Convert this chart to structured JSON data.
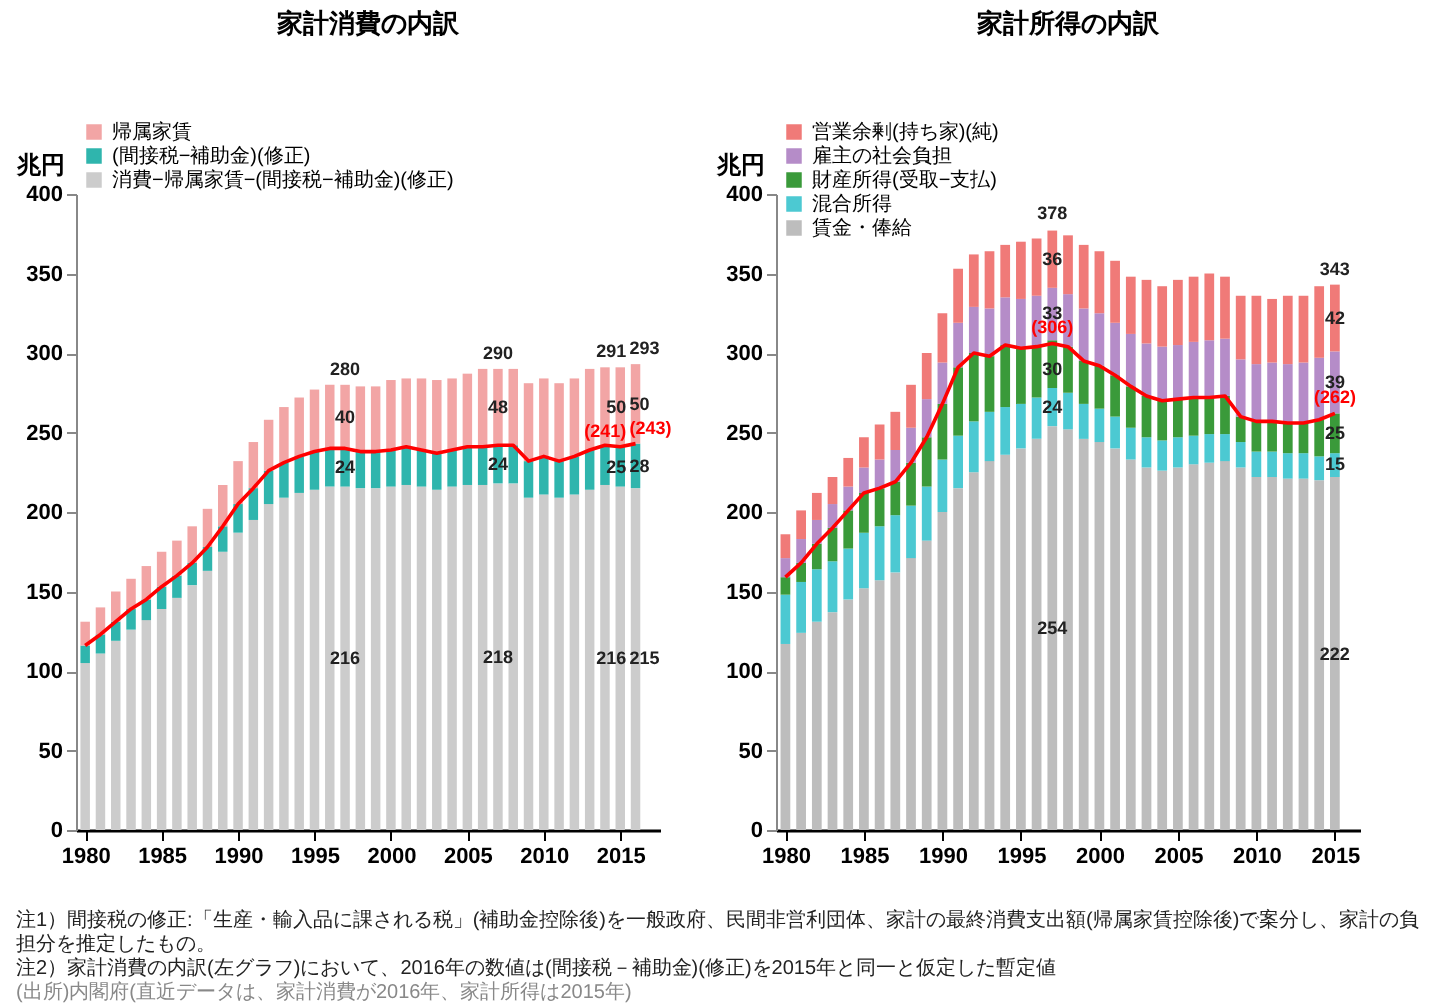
{
  "chart_data": [
    {
      "type": "bar",
      "title": "家計消費の内訳",
      "ylabel": "兆円",
      "stacked": true,
      "legend": "top left",
      "x": [
        1980,
        1981,
        1982,
        1983,
        1984,
        1985,
        1986,
        1987,
        1988,
        1989,
        1990,
        1991,
        1992,
        1993,
        1994,
        1995,
        1996,
        1997,
        1998,
        1999,
        2000,
        2001,
        2002,
        2003,
        2004,
        2005,
        2006,
        2007,
        2008,
        2009,
        2010,
        2011,
        2012,
        2013,
        2014,
        2015,
        2016
      ],
      "xlim": [
        1979.4,
        2017.6
      ],
      "xticks": [
        1980,
        1985,
        1990,
        1995,
        2000,
        2005,
        2010,
        2015
      ],
      "ylim": [
        0,
        400
      ],
      "yticks": [
        0,
        50,
        100,
        150,
        200,
        250,
        300,
        350,
        400
      ],
      "series": [
        {
          "name": "消費−帰属家賃−(間接税−補助金)(修正)",
          "color": "#cccccc",
          "values": [
            105,
            111,
            119,
            126,
            132,
            139,
            146,
            154,
            163,
            175,
            187,
            195,
            205,
            209,
            212,
            214,
            216,
            216,
            215,
            215,
            216,
            217,
            216,
            214,
            216,
            217,
            217,
            218,
            218,
            209,
            211,
            209,
            211,
            214,
            217,
            216,
            215
          ]
        },
        {
          "name": "(間接税−補助金)(修正)",
          "color": "#2fb5ad",
          "values": [
            11,
            12,
            12,
            13,
            13,
            14,
            14,
            14,
            15,
            16,
            18,
            20,
            21,
            22,
            23,
            24,
            24,
            24,
            23,
            23,
            23,
            24,
            23,
            23,
            23,
            24,
            24,
            24,
            24,
            23,
            24,
            23,
            24,
            25,
            25,
            25,
            28
          ]
        },
        {
          "name": "帰属家賃",
          "color": "#f2a5a5",
          "values": [
            15,
            17,
            19,
            19,
            21,
            22,
            22,
            23,
            24,
            26,
            27,
            29,
            32,
            35,
            37,
            39,
            40,
            40,
            41,
            41,
            44,
            43,
            45,
            46,
            45,
            46,
            49,
            48,
            48,
            49,
            49,
            49,
            49,
            51,
            49,
            50,
            50
          ]
        },
        {
          "type": "line",
          "color": "#ff0000",
          "values": [
            116,
            123,
            131,
            139,
            145,
            153,
            160,
            168,
            178,
            191,
            205,
            215,
            226,
            231,
            235,
            238,
            240,
            240,
            238,
            238,
            239,
            241,
            239,
            237,
            239,
            241,
            241,
            242,
            242,
            232,
            235,
            232,
            235,
            239,
            242,
            241,
            243
          ]
        }
      ],
      "annotations": [
        {
          "text": "280",
          "x": 1997,
          "y": 280
        },
        {
          "text": "40",
          "x": 1997,
          "y": 260
        },
        {
          "text": "24",
          "x": 1997,
          "y": 228
        },
        {
          "text": "216",
          "x": 1997,
          "y": 108
        },
        {
          "text": "290",
          "x": 2007,
          "y": 290
        },
        {
          "text": "48",
          "x": 2007,
          "y": 266
        },
        {
          "text": "24",
          "x": 2007,
          "y": 230
        },
        {
          "text": "218",
          "x": 2007,
          "y": 109
        },
        {
          "text": "291",
          "x": 2015,
          "y": 291
        },
        {
          "text": "50",
          "x": 2015,
          "y": 266
        },
        {
          "text": "25",
          "x": 2015,
          "y": 228
        },
        {
          "text": "216",
          "x": 2015,
          "y": 108
        },
        {
          "text": "(241)",
          "x": 2015,
          "y": 241
        },
        {
          "text": "293",
          "x": 2016,
          "y": 293
        },
        {
          "text": "50",
          "x": 2016,
          "y": 268
        },
        {
          "text": "28",
          "x": 2016,
          "y": 229
        },
        {
          "text": "215",
          "x": 2016,
          "y": 108
        },
        {
          "text": "(243)",
          "x": 2016,
          "y": 243
        },
        "注1）間接税の修正:「生産・輸入品に課される税」(補助金控除後)を一般政府、民間非営利団体、家計の最終消費支出額(帰属家賃控除後)で案分し、家計の負担分を推定したもの。",
        "注2）家計消費の内訳(左グラフ)において、2016年の数値は(間接税－補助金)(修正)を2015年と同一と仮定した暫定値",
        "(出所)内閣府(直近データは、家計消費が2016年、家計所得は2015年)"
      ]
    },
    {
      "type": "bar",
      "title": "家計所得の内訳",
      "ylabel": "兆円",
      "stacked": true,
      "legend": "top left",
      "x": [
        1980,
        1981,
        1982,
        1983,
        1984,
        1985,
        1986,
        1987,
        1988,
        1989,
        1990,
        1991,
        1992,
        1993,
        1994,
        1995,
        1996,
        1997,
        1998,
        1999,
        2000,
        2001,
        2002,
        2003,
        2004,
        2005,
        2006,
        2007,
        2008,
        2009,
        2010,
        2011,
        2012,
        2013,
        2014,
        2015
      ],
      "xlim": [
        1979.4,
        2016.6
      ],
      "xticks": [
        1980,
        1985,
        1990,
        1995,
        2000,
        2005,
        2010,
        2015
      ],
      "ylim": [
        0,
        400
      ],
      "yticks": [
        0,
        50,
        100,
        150,
        200,
        250,
        300,
        350,
        400
      ],
      "series": [
        {
          "name": "賃金・俸給",
          "color": "#bdbdbd",
          "values": [
            117,
            124,
            131,
            137,
            145,
            152,
            157,
            162,
            171,
            182,
            200,
            215,
            225,
            232,
            236,
            240,
            246,
            254,
            252,
            246,
            244,
            240,
            233,
            228,
            226,
            228,
            230,
            231,
            232,
            228,
            222,
            222,
            221,
            221,
            220,
            222
          ]
        },
        {
          "name": "混合所得",
          "color": "#4cc9d2",
          "values": [
            31,
            32,
            33,
            32,
            32,
            35,
            34,
            36,
            33,
            34,
            33,
            33,
            32,
            31,
            30,
            28,
            26,
            24,
            23,
            22,
            21,
            20,
            20,
            19,
            19,
            19,
            18,
            18,
            17,
            16,
            16,
            16,
            16,
            16,
            15,
            15
          ]
        },
        {
          "name": "財産所得(受取−支払)",
          "color": "#3a9a3a",
          "values": [
            11,
            12,
            16,
            21,
            24,
            25,
            24,
            21,
            27,
            31,
            35,
            43,
            43,
            35,
            39,
            35,
            32,
            30,
            29,
            27,
            27,
            26,
            26,
            26,
            25,
            24,
            24,
            23,
            24,
            16,
            19,
            19,
            19,
            19,
            23,
            25
          ]
        },
        {
          "name": "雇主の社会負担",
          "color": "#b58cc8",
          "values": [
            12,
            15,
            15,
            15,
            15,
            16,
            18,
            20,
            22,
            24,
            26,
            28,
            29,
            30,
            30,
            31,
            32,
            33,
            33,
            33,
            33,
            33,
            33,
            33,
            34,
            34,
            35,
            36,
            36,
            36,
            36,
            37,
            37,
            38,
            39,
            39
          ]
        },
        {
          "name": "営業余剰(持ち家)(純)",
          "color": "#f07a78",
          "values": [
            15,
            18,
            17,
            17,
            18,
            19,
            22,
            24,
            27,
            29,
            31,
            34,
            33,
            36,
            33,
            36,
            36,
            36,
            37,
            40,
            39,
            39,
            36,
            40,
            38,
            41,
            41,
            42,
            39,
            40,
            43,
            40,
            43,
            42,
            45,
            42
          ]
        },
        {
          "type": "line",
          "color": "#ff0000",
          "values": [
            159,
            168,
            180,
            190,
            201,
            212,
            215,
            219,
            231,
            247,
            268,
            291,
            300,
            298,
            305,
            303,
            304,
            306,
            304,
            295,
            292,
            286,
            279,
            273,
            270,
            271,
            272,
            272,
            273,
            260,
            257,
            257,
            256,
            256,
            258,
            262
          ]
        }
      ],
      "annotations": [
        {
          "text": "378",
          "x": 1997,
          "y": 378
        },
        {
          "text": "(306)",
          "x": 1997,
          "y": 306
        },
        {
          "text": "36",
          "x": 1997,
          "y": 359
        },
        {
          "text": "33",
          "x": 1997,
          "y": 325
        },
        {
          "text": "30",
          "x": 1997,
          "y": 290
        },
        {
          "text": "24",
          "x": 1997,
          "y": 266
        },
        {
          "text": "254",
          "x": 1997,
          "y": 127
        },
        {
          "text": "343",
          "x": 2015,
          "y": 343
        },
        {
          "text": "42",
          "x": 2015,
          "y": 322
        },
        {
          "text": "39",
          "x": 2015,
          "y": 282
        },
        {
          "text": "(262)",
          "x": 2015,
          "y": 262
        },
        {
          "text": "25",
          "x": 2015,
          "y": 250
        },
        {
          "text": "15",
          "x": 2015,
          "y": 230
        },
        {
          "text": "222",
          "x": 2015,
          "y": 111
        }
      ]
    }
  ]
}
